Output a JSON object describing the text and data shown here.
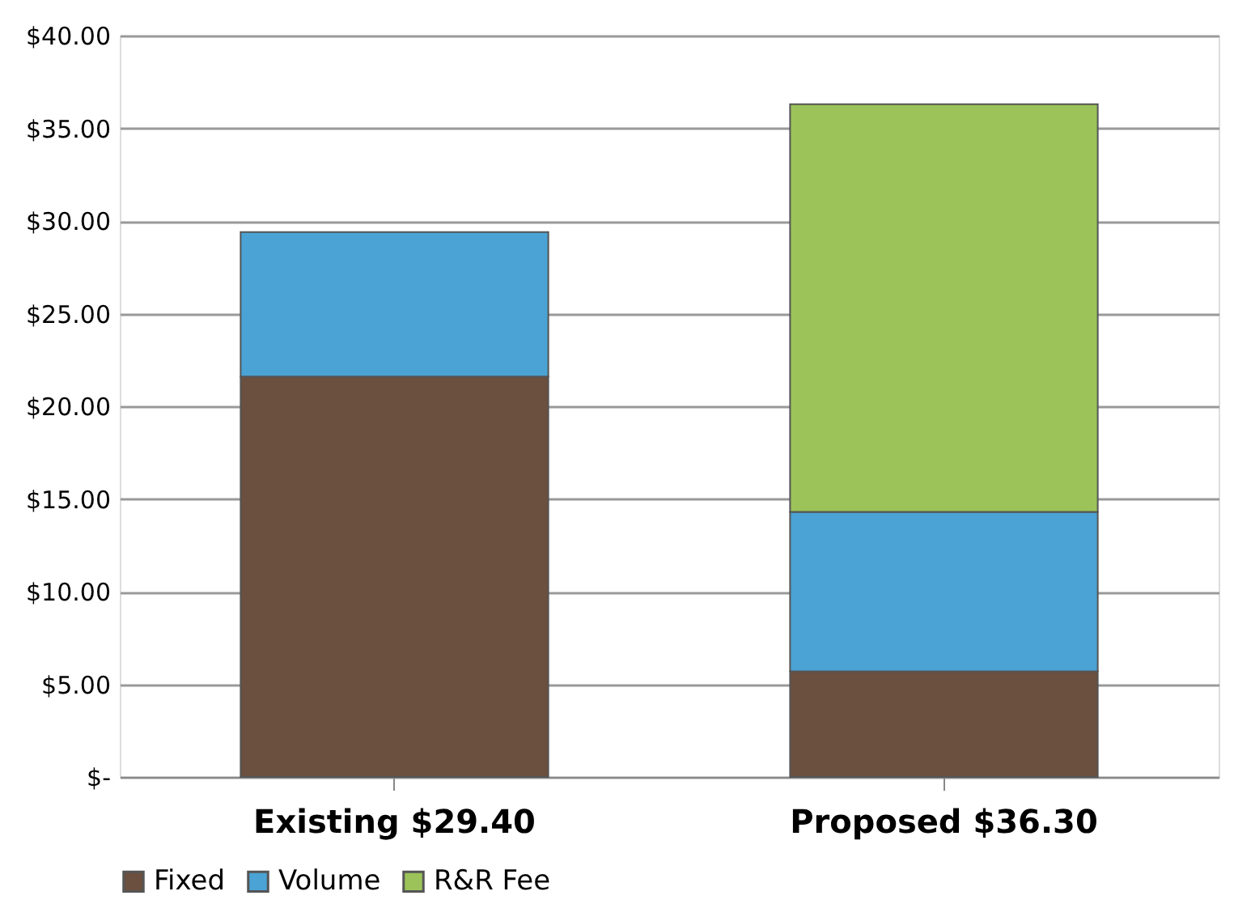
{
  "chart_data": {
    "type": "bar",
    "stacked": true,
    "categories": [
      "Existing $29.40",
      "Proposed $36.30"
    ],
    "series": [
      {
        "name": "Fixed",
        "color": "#6b4f3f",
        "values": [
          21.6,
          5.7
        ]
      },
      {
        "name": "Volume",
        "color": "#4aa3d4",
        "values": [
          7.8,
          8.6
        ]
      },
      {
        "name": "R&R Fee",
        "color": "#9bc35a",
        "values": [
          null,
          22.0
        ]
      }
    ],
    "ylim": [
      0,
      40
    ],
    "yticks": [
      {
        "value": 0,
        "label": "$-"
      },
      {
        "value": 5,
        "label": "$5.00"
      },
      {
        "value": 10,
        "label": "$10.00"
      },
      {
        "value": 15,
        "label": "$15.00"
      },
      {
        "value": 20,
        "label": "$20.00"
      },
      {
        "value": 25,
        "label": "$25.00"
      },
      {
        "value": 30,
        "label": "$30.00"
      },
      {
        "value": 35,
        "label": "$35.00"
      },
      {
        "value": 40,
        "label": "$40.00"
      }
    ],
    "grid": "y",
    "legend": "bottom"
  }
}
